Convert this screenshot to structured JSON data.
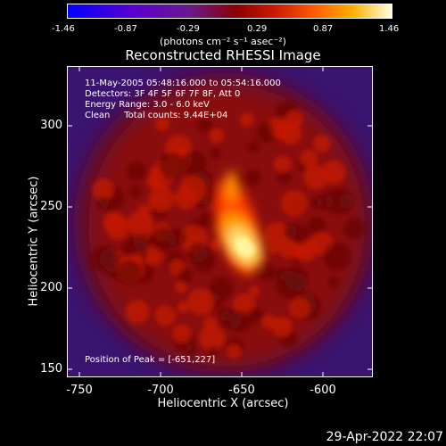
{
  "colorbar": {
    "ticks": [
      "-1.46",
      "-0.87",
      "-0.29",
      "0.29",
      "0.87",
      "1.46"
    ],
    "unit_label": "(photons cm⁻² s⁻¹ asec⁻²)"
  },
  "title": "Reconstructed RHESSI Image",
  "info": {
    "time_range": "11-May-2005 05:48:16.000 to 05:54:16.000",
    "detectors": "Detectors: 3F 4F 5F 6F 7F 8F, Att 0",
    "energy_range": "Energy Range: 3.0 - 6.0 keV",
    "clean_counts": "Clean     Total counts: 9.44E+04",
    "peak_position": "Position of Peak = [-651,227]"
  },
  "axes": {
    "x_label": "Heliocentric X (arcsec)",
    "y_label": "Heliocentric Y (arcsec)",
    "x_ticks": [
      "-750",
      "-700",
      "-650",
      "-600"
    ],
    "y_ticks": [
      "300",
      "250",
      "200",
      "150"
    ]
  },
  "footer_date": "29-Apr-2022 22:07",
  "colors": {
    "background": "#000000",
    "bg_purple": "#3a1470",
    "flare_core": "#fff4a0"
  }
}
